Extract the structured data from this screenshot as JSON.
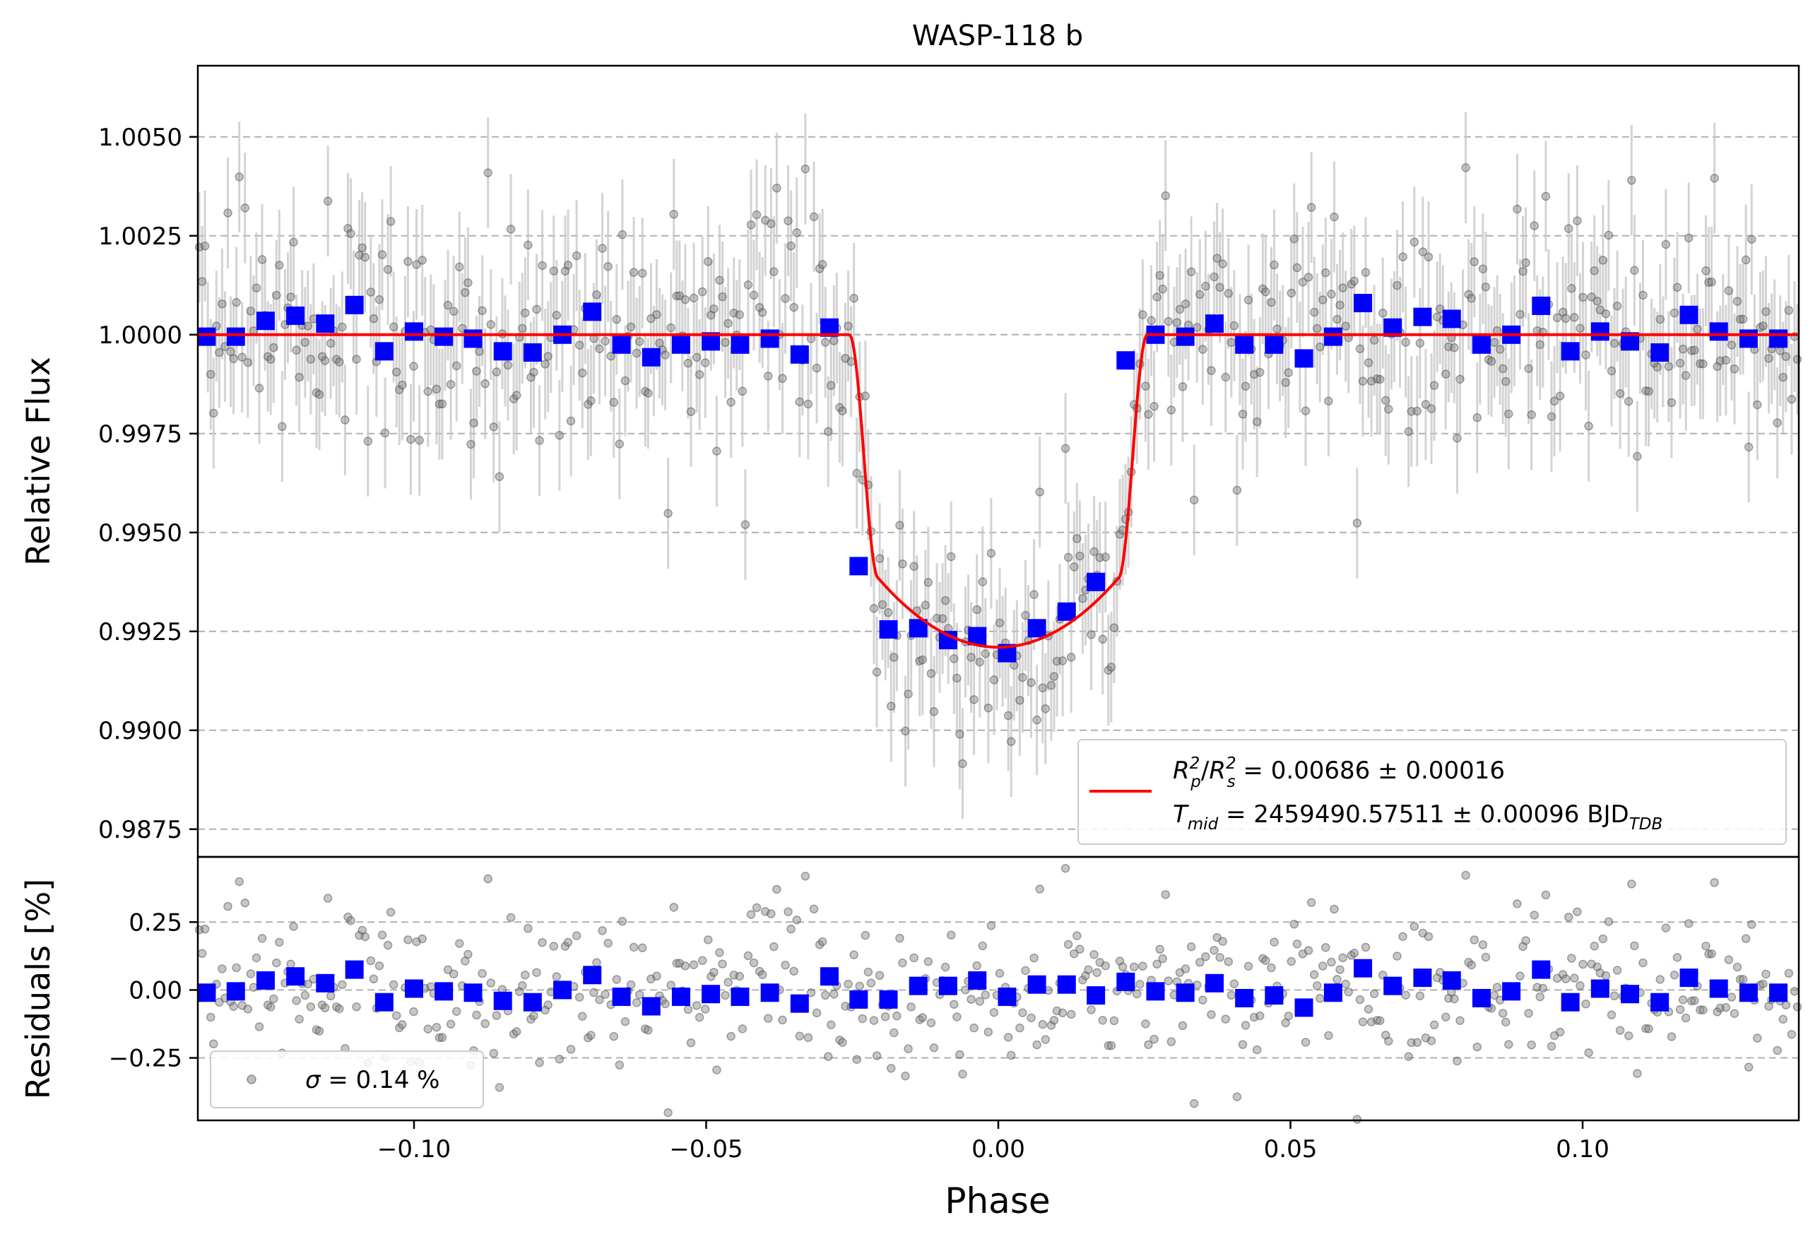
{
  "colors": {
    "raw_points": "#808080",
    "raw_errorbars": "#c8c8c8",
    "binned": "#0000ff",
    "model": "#ff0000",
    "grid": "#b0b0b0",
    "axes": "#000000"
  },
  "chart_data": [
    {
      "id": "lightcurve",
      "type": "scatter",
      "title": "WASP-118 b",
      "xlabel": "",
      "ylabel": "Relative Flux",
      "xlim": [
        -0.137,
        0.137
      ],
      "ylim": [
        0.9868,
        1.0068
      ],
      "yticks": [
        0.9875,
        0.99,
        0.9925,
        0.995,
        0.9975,
        1.0,
        1.0025,
        1.005
      ],
      "ytick_labels": [
        "0.9875",
        "0.9900",
        "0.9925",
        "0.9950",
        "0.9975",
        "1.0000",
        "1.0025",
        "1.0050"
      ],
      "grid": "horizontal dashed",
      "legend_position": "lower-right",
      "legend_entries": [
        {
          "sym": "R",
          "sub": "p",
          "sup": "2",
          "mid": "/",
          "sym2": "R",
          "sub2": "s",
          "sup2": "2",
          "rest": " = 0.00686 ± 0.00016"
        },
        {
          "sym": "T",
          "sub": "mid",
          "rest": " = 2459490.57511 ± 0.00096 BJD",
          "trail_sub": "TDB"
        }
      ],
      "raw_series": {
        "n_points": 560,
        "baseline": 1.0,
        "scatter_sd": 0.0014,
        "errorbar_halfwidth": 0.0014
      },
      "model": {
        "name": "transit model",
        "baseline": 1.0,
        "depth_min": 0.9921,
        "ingress_start": -0.0255,
        "ingress_end": -0.0205,
        "egress_start": 0.0205,
        "egress_end": 0.0255
      },
      "binned": {
        "x": [
          -0.1355,
          -0.1305,
          -0.1254,
          -0.1203,
          -0.1152,
          -0.1102,
          -0.1051,
          -0.1,
          -0.0949,
          -0.0899,
          -0.0848,
          -0.0797,
          -0.0746,
          -0.0695,
          -0.0645,
          -0.0594,
          -0.0543,
          -0.0492,
          -0.0442,
          -0.0391,
          -0.034,
          -0.0289,
          -0.0239,
          -0.0188,
          -0.0137,
          -0.0086,
          -0.0036,
          0.0015,
          0.0066,
          0.0117,
          0.0167,
          0.0218,
          0.0269,
          0.032,
          0.037,
          0.0421,
          0.0472,
          0.0523,
          0.0573,
          0.0624,
          0.0675,
          0.0726,
          0.0776,
          0.0827,
          0.0878,
          0.0929,
          0.0979,
          0.103,
          0.1081,
          0.1132,
          0.1182,
          0.1233,
          0.1284,
          0.1335
        ],
        "y": [
          0.99995,
          0.99995,
          1.00035,
          1.00048,
          1.00028,
          1.00075,
          0.99958,
          1.00008,
          0.99995,
          0.9999,
          0.99958,
          0.99955,
          1.0,
          1.00058,
          0.99975,
          0.99943,
          0.99975,
          0.99983,
          0.99975,
          0.9999,
          0.9995,
          1.00018,
          0.99415,
          0.99255,
          0.99258,
          0.99228,
          0.99238,
          0.99195,
          0.99258,
          0.993,
          0.99375,
          0.99935,
          1.0,
          0.99995,
          1.00028,
          0.99975,
          0.99975,
          0.9994,
          0.99995,
          1.0008,
          1.00018,
          1.00045,
          1.0004,
          0.99975,
          1.0,
          1.00073,
          0.99958,
          1.00008,
          0.99983,
          0.99955,
          1.0005,
          1.00008,
          0.9999,
          0.9999
        ],
        "yerr": 0.0002
      }
    },
    {
      "id": "residuals",
      "type": "scatter",
      "xlabel": "Phase",
      "ylabel": "Residuals [%]",
      "xlim": [
        -0.137,
        0.137
      ],
      "ylim": [
        -0.48,
        0.49
      ],
      "xticks": [
        -0.1,
        -0.05,
        0.0,
        0.05,
        0.1
      ],
      "xtick_labels": [
        "−0.10",
        "−0.05",
        "0.00",
        "0.05",
        "0.10"
      ],
      "yticks": [
        -0.25,
        0.0,
        0.25
      ],
      "ytick_labels": [
        "−0.25",
        "0.00",
        "0.25"
      ],
      "grid": "horizontal dashed",
      "legend_position": "lower-left",
      "legend_entry": {
        "sym": "σ",
        "rest": " = 0.14 %"
      },
      "raw_series": {
        "n_points": 560,
        "scatter_sd": 0.14
      },
      "binned": {
        "x": [
          -0.1355,
          -0.1305,
          -0.1254,
          -0.1203,
          -0.1152,
          -0.1102,
          -0.1051,
          -0.1,
          -0.0949,
          -0.0899,
          -0.0848,
          -0.0797,
          -0.0746,
          -0.0695,
          -0.0645,
          -0.0594,
          -0.0543,
          -0.0492,
          -0.0442,
          -0.0391,
          -0.034,
          -0.0289,
          -0.0239,
          -0.0188,
          -0.0137,
          -0.0086,
          -0.0036,
          0.0015,
          0.0066,
          0.0117,
          0.0167,
          0.0218,
          0.0269,
          0.032,
          0.037,
          0.0421,
          0.0472,
          0.0523,
          0.0573,
          0.0624,
          0.0675,
          0.0726,
          0.0776,
          0.0827,
          0.0878,
          0.0929,
          0.0979,
          0.103,
          0.1081,
          0.1132,
          0.1182,
          0.1233,
          0.1284,
          0.1335
        ],
        "y": [
          -0.01,
          -0.005,
          0.035,
          0.05,
          0.025,
          0.075,
          -0.045,
          0.005,
          -0.005,
          -0.01,
          -0.04,
          -0.045,
          0.0,
          0.055,
          -0.025,
          -0.06,
          -0.025,
          -0.015,
          -0.025,
          -0.01,
          -0.05,
          0.05,
          -0.035,
          -0.035,
          0.015,
          0.015,
          0.035,
          -0.025,
          0.02,
          0.02,
          -0.02,
          0.03,
          -0.005,
          -0.01,
          0.025,
          -0.03,
          -0.02,
          -0.065,
          -0.01,
          0.08,
          0.015,
          0.045,
          0.035,
          -0.03,
          -0.005,
          0.075,
          -0.045,
          0.005,
          -0.015,
          -0.045,
          0.045,
          0.005,
          -0.01,
          -0.01
        ]
      }
    }
  ]
}
